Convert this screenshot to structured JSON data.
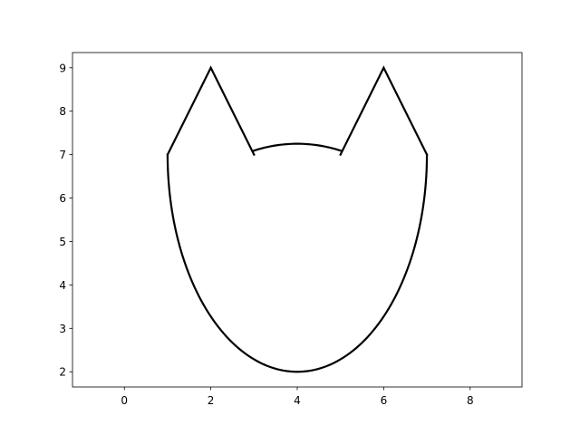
{
  "chart_data": {
    "type": "line",
    "title": "",
    "xlabel": "",
    "ylabel": "",
    "xlim": [
      -1.2,
      9.2
    ],
    "ylim": [
      1.65,
      9.35
    ],
    "xticks": [
      0,
      2,
      4,
      6,
      8
    ],
    "yticks": [
      2,
      3,
      4,
      5,
      6,
      7,
      8,
      9
    ],
    "grid": false,
    "legend": "none",
    "series": [
      {
        "color": "#000000",
        "segments": [
          {
            "kind": "polyline",
            "points": [
              [
                1,
                7
              ],
              [
                2,
                9
              ],
              [
                3,
                7
              ]
            ]
          },
          {
            "kind": "arc",
            "center": [
              4,
              4
            ],
            "radius": 3.25,
            "from_x": 3,
            "to_x": 5,
            "side": "upper"
          },
          {
            "kind": "polyline",
            "points": [
              [
                5,
                7
              ],
              [
                6,
                9
              ],
              [
                7,
                7
              ]
            ]
          },
          {
            "kind": "half-ellipse",
            "center": [
              4,
              7
            ],
            "rx": 3,
            "ry": 5,
            "side": "lower"
          }
        ]
      }
    ]
  }
}
